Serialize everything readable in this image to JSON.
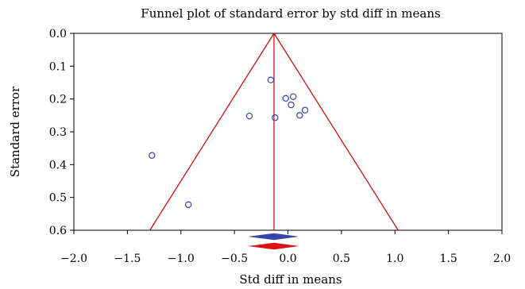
{
  "chart_data": {
    "type": "scatter",
    "title": "Funnel plot of standard error by std diff in means",
    "xlabel": "Std diff in means",
    "ylabel": "Standard error",
    "xlim": [
      -2.0,
      2.0
    ],
    "ylim": [
      0.0,
      0.6
    ],
    "y_inverted": true,
    "x_ticks": [
      "−2.0",
      "−1.5",
      "−1.0",
      "−0.5",
      "0.0",
      "0.5",
      "1.0",
      "1.5",
      "2.0"
    ],
    "x_tick_values": [
      -2.0,
      -1.5,
      -1.0,
      -0.5,
      0.0,
      0.5,
      1.0,
      1.5,
      2.0
    ],
    "y_ticks": [
      "0.0",
      "0.1",
      "0.2",
      "0.3",
      "0.4",
      "0.5",
      "0.6"
    ],
    "y_tick_values": [
      0.0,
      0.1,
      0.2,
      0.3,
      0.4,
      0.5,
      0.6
    ],
    "grid": false,
    "pooled_effect": -0.13,
    "funnel": {
      "apex": [
        -0.13,
        0.0
      ],
      "bottom_left": [
        -1.29,
        0.6
      ],
      "bottom_right": [
        1.03,
        0.6
      ]
    },
    "points": [
      {
        "x": -0.16,
        "y": 0.142
      },
      {
        "x": -0.02,
        "y": 0.198
      },
      {
        "x": 0.05,
        "y": 0.193
      },
      {
        "x": 0.03,
        "y": 0.218
      },
      {
        "x": 0.16,
        "y": 0.234
      },
      {
        "x": 0.11,
        "y": 0.25
      },
      {
        "x": -0.36,
        "y": 0.252
      },
      {
        "x": -0.12,
        "y": 0.257
      },
      {
        "x": -1.27,
        "y": 0.372
      },
      {
        "x": -0.93,
        "y": 0.522
      }
    ],
    "summary_diamonds": [
      {
        "center": -0.13,
        "lower": -0.36,
        "upper": 0.09,
        "color": "#3344aa"
      },
      {
        "center": -0.13,
        "lower": -0.36,
        "upper": 0.09,
        "color": "#dd1111"
      }
    ],
    "colors": {
      "points": "#3344aa",
      "funnel": "#cc0000",
      "axes": "#000000"
    }
  }
}
